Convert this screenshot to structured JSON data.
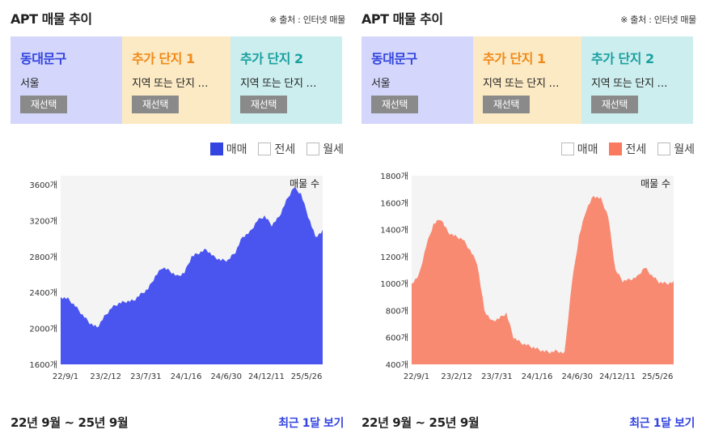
{
  "panels": [
    {
      "title": "APT 매물 추이",
      "source": "※ 출처 : 인터넷 매물",
      "selectors": [
        {
          "name": "동대문구",
          "sub": "서울",
          "button": "재선택"
        },
        {
          "name": "추가 단지 1",
          "sub": "지역 또는 단지 …",
          "button": "재선택"
        },
        {
          "name": "추가 단지 2",
          "sub": "지역 또는 단지 …",
          "button": "재선택"
        }
      ],
      "legend": [
        {
          "label": "매매",
          "checked": true
        },
        {
          "label": "전세",
          "checked": false
        },
        {
          "label": "월세",
          "checked": false
        }
      ],
      "period": "22년 9월 ~ 25년 9월",
      "recent_link": "최근 1달 보기"
    },
    {
      "title": "APT 매물 추이",
      "source": "※ 출처 : 인터넷 매물",
      "selectors": [
        {
          "name": "동대문구",
          "sub": "서울",
          "button": "재선택"
        },
        {
          "name": "추가 단지 1",
          "sub": "지역 또는 단지 …",
          "button": "재선택"
        },
        {
          "name": "추가 단지 2",
          "sub": "지역 또는 단지 …",
          "button": "재선택"
        }
      ],
      "legend": [
        {
          "label": "매매",
          "checked": false
        },
        {
          "label": "전세",
          "checked": true
        },
        {
          "label": "월세",
          "checked": false
        }
      ],
      "period": "22년 9월 ~ 25년 9월",
      "recent_link": "최근 1달 보기"
    }
  ],
  "colors": {
    "sale": "#4a55f0",
    "jeonse": "#f98a72",
    "link": "#3344e0"
  },
  "chart_data": [
    {
      "type": "area",
      "title": "",
      "series_label": "매물 수",
      "xlabel": "",
      "ylabel": "",
      "ylim": [
        1600,
        3700
      ],
      "yticks": [
        1600,
        2000,
        2400,
        2800,
        3200,
        3600
      ],
      "ytick_labels": [
        "1600개",
        "2000개",
        "2400개",
        "2800개",
        "3200개",
        "3600개"
      ],
      "xtick_labels": [
        "22/9/1",
        "23/2/12",
        "23/7/31",
        "24/1/16",
        "24/6/30",
        "24/12/11",
        "25/5/26"
      ],
      "x": [
        "22/9",
        "22/10",
        "22/11",
        "22/12",
        "23/1",
        "23/2",
        "23/3",
        "23/4",
        "23/5",
        "23/6",
        "23/7",
        "23/8",
        "23/9",
        "23/10",
        "23/11",
        "23/12",
        "24/1",
        "24/2",
        "24/3",
        "24/4",
        "24/5",
        "24/6",
        "24/7",
        "24/8",
        "24/9",
        "24/10",
        "24/11",
        "24/12",
        "25/1",
        "25/2",
        "25/3",
        "25/4",
        "25/5",
        "25/6",
        "25/7",
        "25/8",
        "25/9"
      ],
      "values": [
        2350,
        2330,
        2250,
        2150,
        2060,
        2010,
        2130,
        2230,
        2280,
        2300,
        2310,
        2380,
        2440,
        2580,
        2680,
        2640,
        2580,
        2620,
        2800,
        2840,
        2880,
        2800,
        2760,
        2760,
        2850,
        3020,
        3070,
        3200,
        3250,
        3150,
        3240,
        3420,
        3570,
        3500,
        3250,
        3020,
        3080
      ],
      "grid": false
    },
    {
      "type": "area",
      "title": "",
      "series_label": "매물 수",
      "xlabel": "",
      "ylabel": "",
      "ylim": [
        400,
        1800
      ],
      "yticks": [
        400,
        600,
        800,
        1000,
        1200,
        1400,
        1600,
        1800
      ],
      "ytick_labels": [
        "400개",
        "600개",
        "800개",
        "1000개",
        "1200개",
        "1400개",
        "1600개",
        "1800개"
      ],
      "xtick_labels": [
        "22/9/1",
        "23/2/12",
        "23/7/31",
        "24/1/16",
        "24/6/30",
        "24/12/11",
        "25/5/26"
      ],
      "x": [
        "22/9",
        "22/10",
        "22/11",
        "22/12",
        "23/1",
        "23/2",
        "23/3",
        "23/4",
        "23/5",
        "23/6",
        "23/7",
        "23/8",
        "23/9",
        "23/10",
        "23/11",
        "23/12",
        "24/1",
        "24/2",
        "24/3",
        "24/4",
        "24/5",
        "24/6",
        "24/7",
        "24/8",
        "24/9",
        "24/10",
        "24/11",
        "24/12",
        "25/1",
        "25/2",
        "25/3",
        "25/4",
        "25/5",
        "25/6",
        "25/7",
        "25/8",
        "25/9"
      ],
      "values": [
        1000,
        1060,
        1280,
        1440,
        1480,
        1380,
        1350,
        1330,
        1250,
        1150,
        800,
        720,
        740,
        780,
        600,
        560,
        540,
        520,
        500,
        490,
        500,
        480,
        1000,
        1350,
        1550,
        1650,
        1630,
        1500,
        1100,
        1020,
        1030,
        1050,
        1120,
        1060,
        1010,
        1000,
        1010
      ],
      "grid": false
    }
  ]
}
